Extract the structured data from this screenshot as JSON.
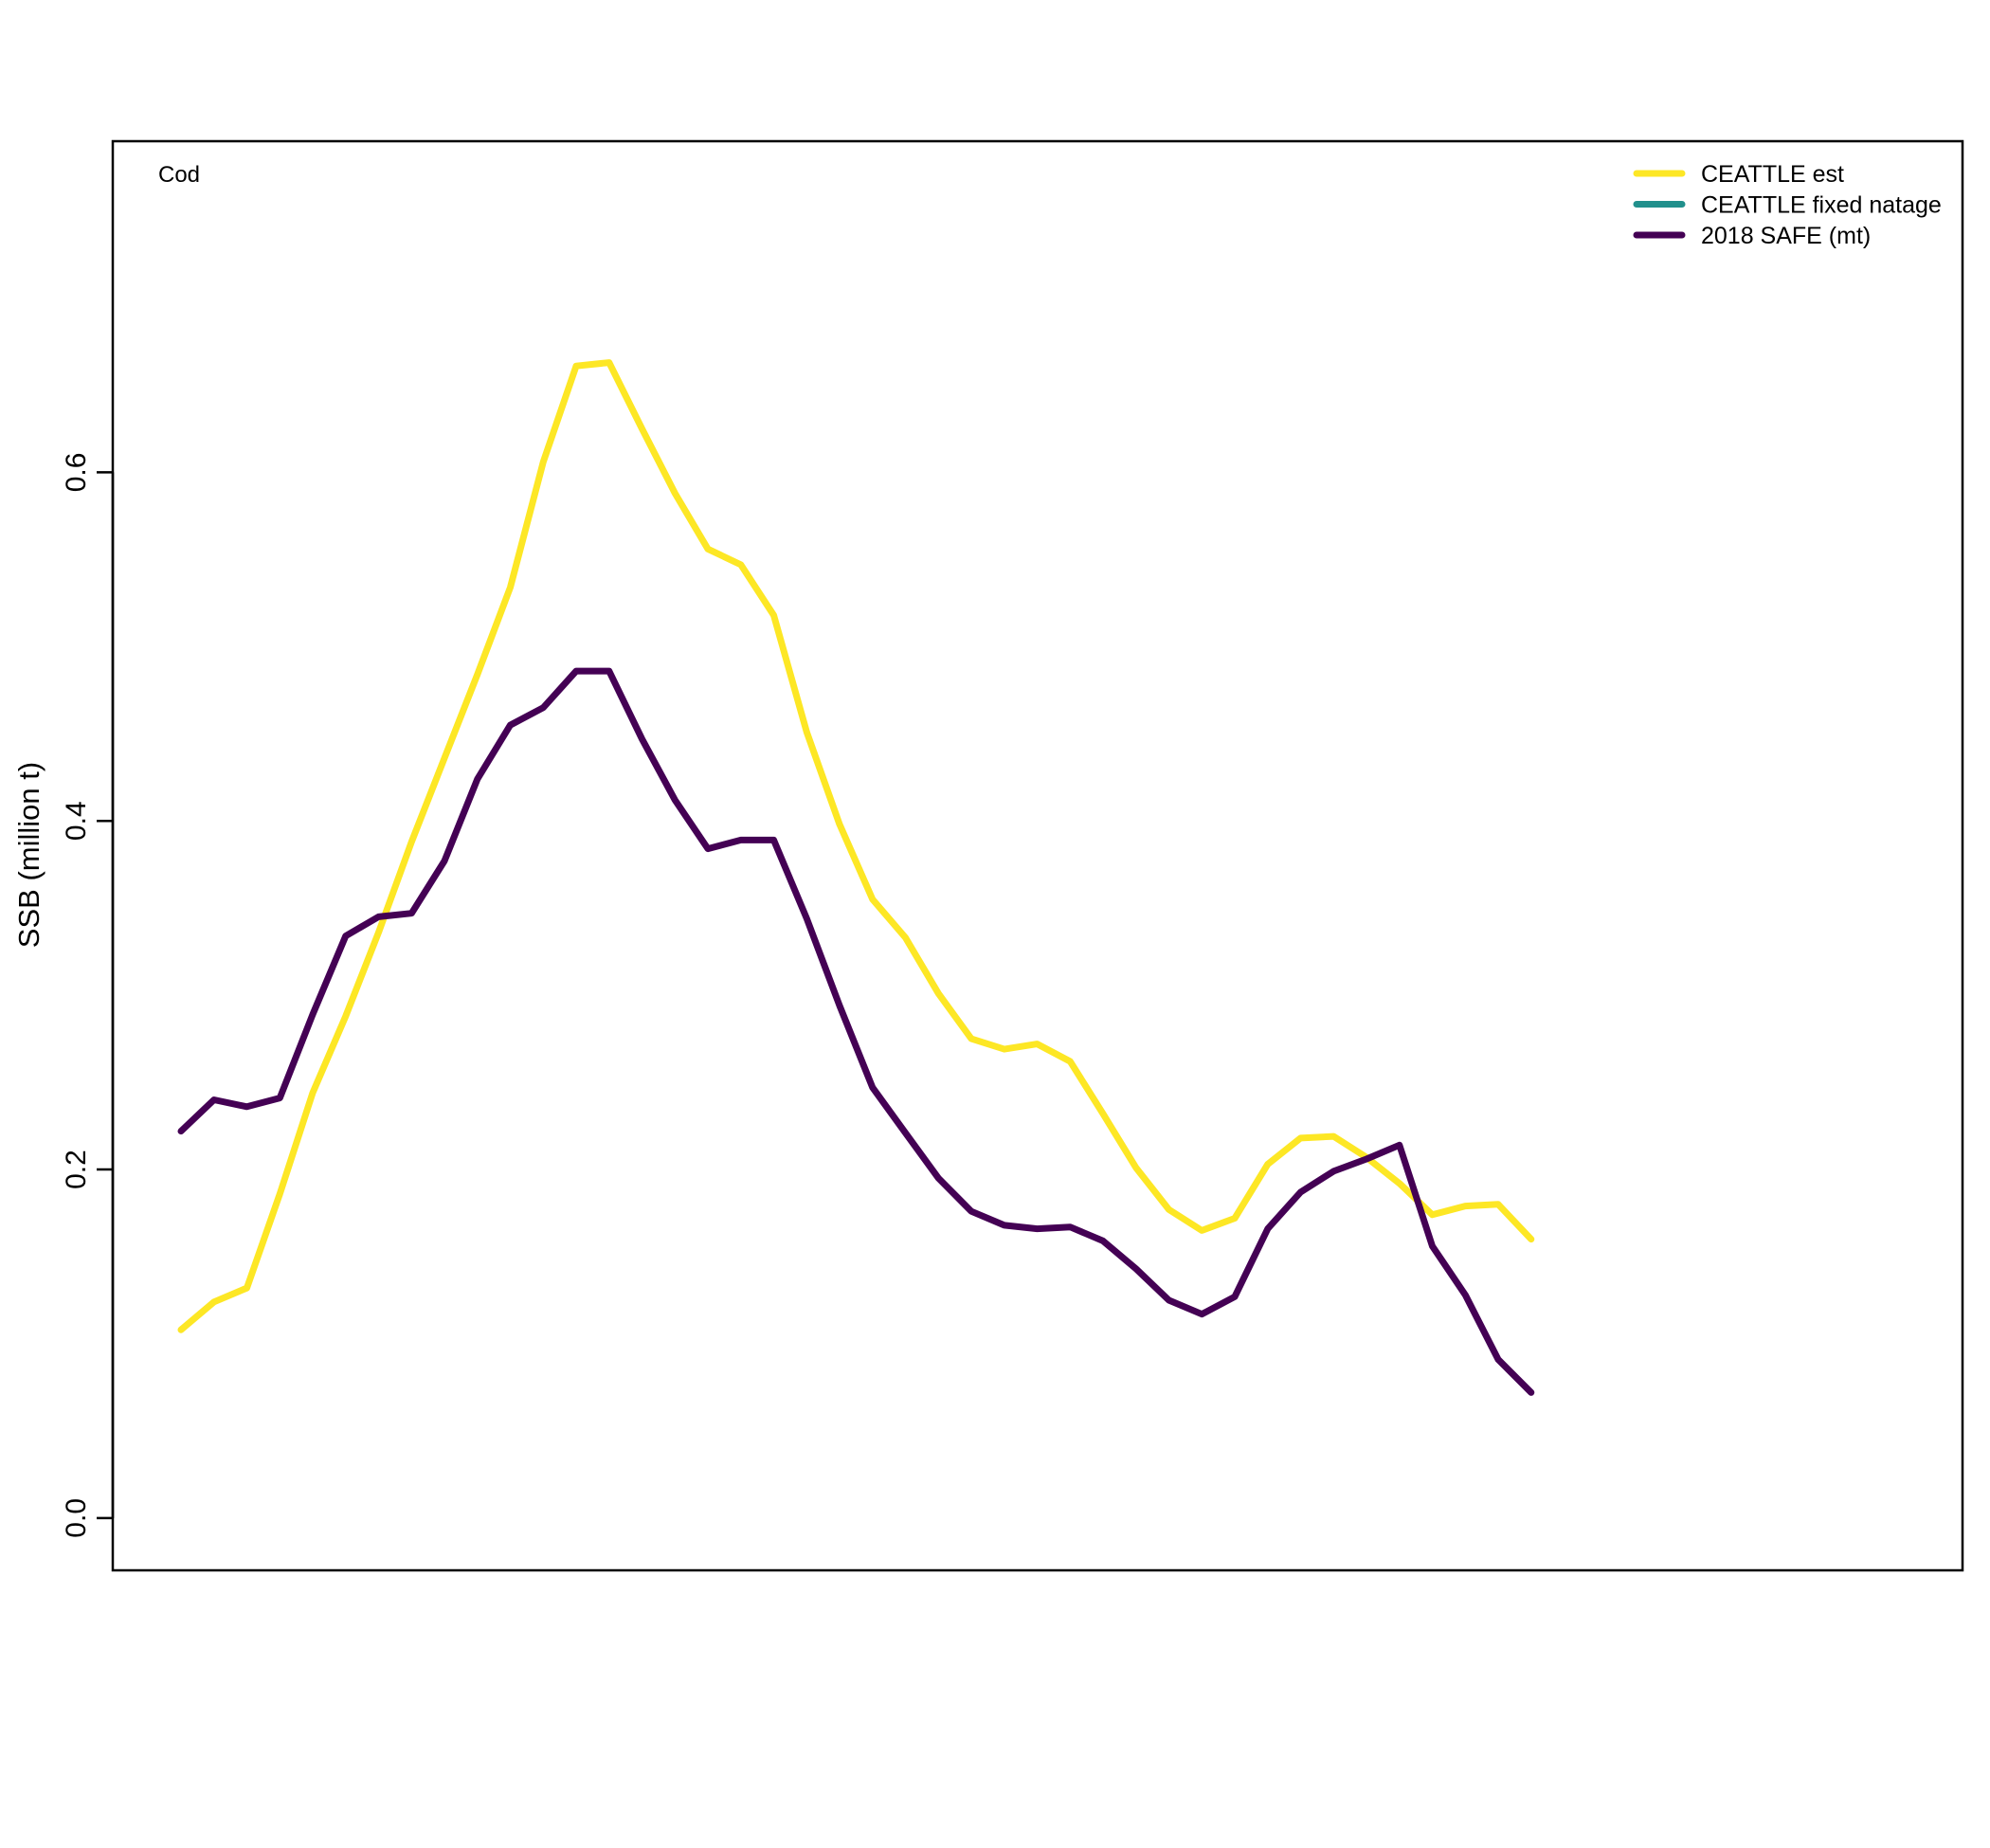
{
  "chart_data": {
    "type": "line",
    "panel_label": "Cod",
    "title": "",
    "xlabel": "",
    "ylabel": "SSB (million t)",
    "ylim": [
      -0.03,
      0.79
    ],
    "yticks": [
      "0.0",
      "0.2",
      "0.4",
      "0.6"
    ],
    "x_axis_shown": false,
    "grid": false,
    "legend_position": "top-right",
    "series": [
      {
        "name": "CEATTLE est",
        "color": "#FDE725",
        "values": [
          0.108,
          0.124,
          0.132,
          0.186,
          0.244,
          0.288,
          0.336,
          0.388,
          0.436,
          0.484,
          0.534,
          0.606,
          0.661,
          0.663,
          0.625,
          0.588,
          0.556,
          0.547,
          0.518,
          0.451,
          0.398,
          0.355,
          0.333,
          0.301,
          0.275,
          0.269,
          0.272,
          0.262,
          0.232,
          0.201,
          0.177,
          0.165,
          0.172,
          0.203,
          0.218,
          0.219,
          0.207,
          0.192,
          0.174,
          0.179,
          0.18,
          0.16
        ]
      },
      {
        "name": "CEATTLE fixed natage",
        "color": "#21908C",
        "values": []
      },
      {
        "name": "2018 SAFE (mt)",
        "color": "#440154",
        "values": [
          0.222,
          0.24,
          0.236,
          0.241,
          0.289,
          0.334,
          0.345,
          0.347,
          0.377,
          0.424,
          0.455,
          0.465,
          0.486,
          0.486,
          0.447,
          0.412,
          0.384,
          0.389,
          0.389,
          0.344,
          0.294,
          0.247,
          0.221,
          0.195,
          0.176,
          0.168,
          0.166,
          0.167,
          0.159,
          0.143,
          0.125,
          0.117,
          0.127,
          0.166,
          0.187,
          0.199,
          0.206,
          0.214,
          0.156,
          0.128,
          0.091,
          0.072
        ]
      }
    ]
  }
}
